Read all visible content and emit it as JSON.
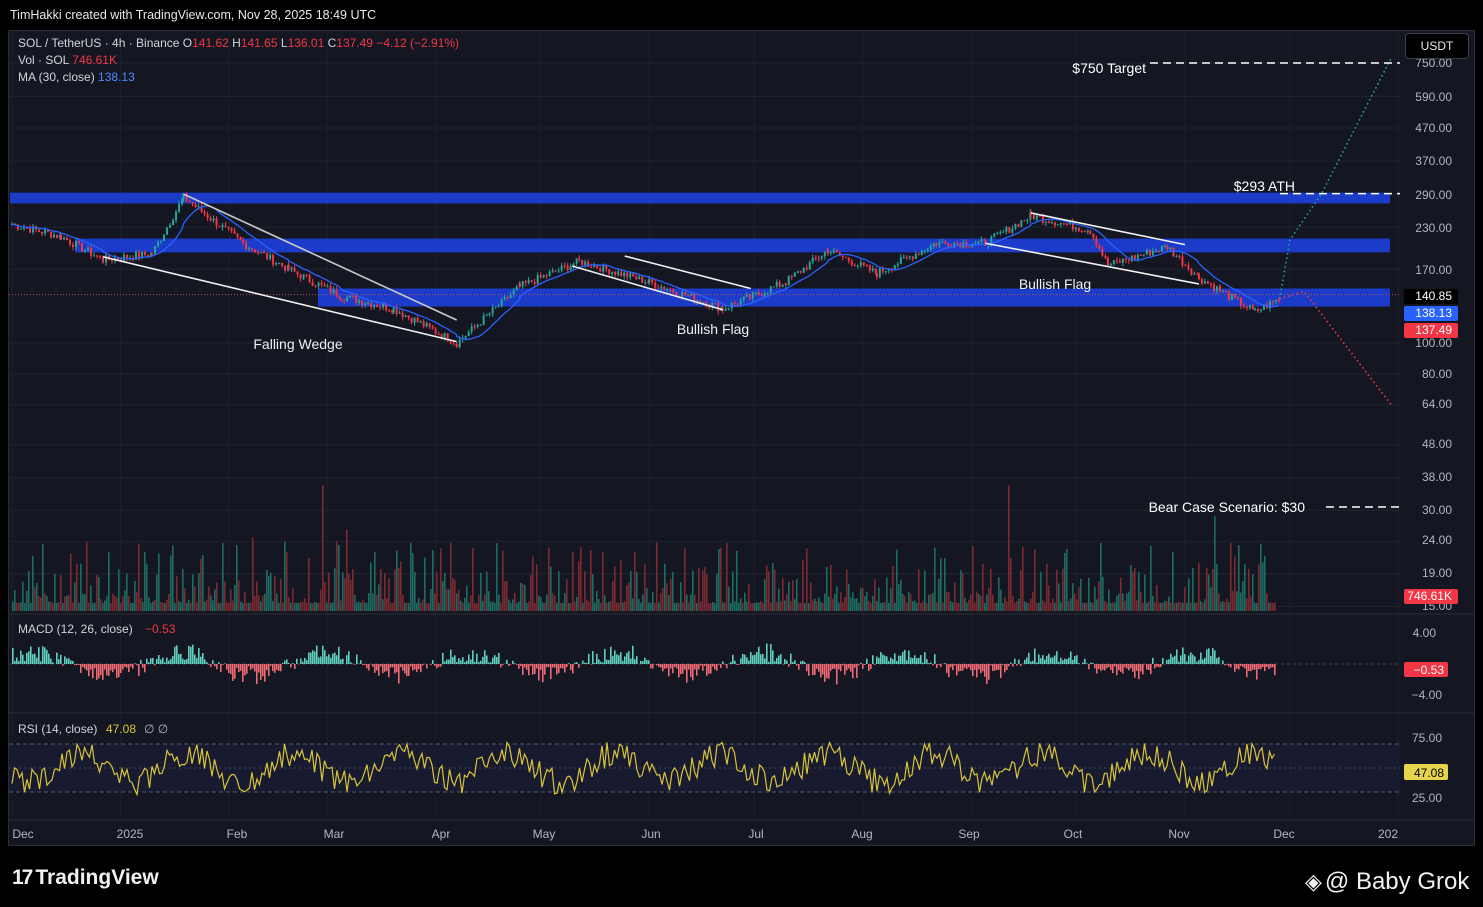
{
  "header": {
    "attribution": "TimHakki created with TradingView.com, Nov 28, 2025 18:49 UTC",
    "symbol": "SOL / TetherUS · 4h · Binance",
    "o_label": "O",
    "o": "141.62",
    "h_label": "H",
    "h": "141.65",
    "l_label": "L",
    "l": "136.01",
    "c_label": "C",
    "c": "137.49",
    "change": "−4.12 (−2.91%)",
    "vol_label": "Vol · SOL",
    "vol": "746.61K",
    "ma_label": "MA (30, close)",
    "ma": "138.13"
  },
  "currency_button": "USDT",
  "price_axis": [
    "750.00",
    "590.00",
    "470.00",
    "370.00",
    "290.00",
    "230.00",
    "170.00",
    "100.00",
    "80.00",
    "64.00",
    "48.00",
    "38.00",
    "30.00",
    "24.00",
    "19.00",
    "15.00"
  ],
  "price_labels": {
    "last_hi": "140.85",
    "ma": "138.13",
    "close": "137.49",
    "vol": "746.61K"
  },
  "macd": {
    "label": "MACD (12, 26, close)",
    "value": "−0.53",
    "axis": [
      "4.00",
      "−4.00"
    ],
    "badge": "−0.53"
  },
  "rsi": {
    "label": "RSI (14, close)",
    "value": "47.08",
    "extra": "∅  ∅",
    "axis": [
      "75.00",
      "25.00"
    ],
    "badge": "47.08"
  },
  "time_axis": [
    "Dec",
    "2025",
    "Feb",
    "Mar",
    "Apr",
    "May",
    "Jun",
    "Jul",
    "Aug",
    "Sep",
    "Oct",
    "Nov",
    "Dec",
    "202"
  ],
  "annotations": {
    "target": "$750 Target",
    "ath": "$293 ATH",
    "bear": "Bear Case Scenario: $30",
    "wedge": "Falling Wedge",
    "flag1": "Bullish Flag",
    "flag2": "Bullish Flag"
  },
  "footer": {
    "logo": "TradingView",
    "watermark": "@ Baby Grok"
  },
  "colors": {
    "up": "#26a69a",
    "down": "#f23645",
    "ma": "#2962ff",
    "band": "#1a3bd6",
    "rsi": "#d8c43a",
    "bg": "#141721"
  },
  "chart_data": {
    "type": "candlestick",
    "symbol": "SOL / TetherUS",
    "interval": "4h",
    "y_scale": "log",
    "ylim": [
      15,
      750
    ],
    "x_range": [
      "Dec 2024",
      "Dec 2025"
    ],
    "price_path": [
      {
        "date": "2024-12-01",
        "close": 235
      },
      {
        "date": "2024-12-15",
        "close": 215
      },
      {
        "date": "2024-12-27",
        "close": 182
      },
      {
        "date": "2025-01-10",
        "close": 190
      },
      {
        "date": "2025-01-19",
        "close": 285
      },
      {
        "date": "2025-02-05",
        "close": 205
      },
      {
        "date": "2025-02-18",
        "close": 170
      },
      {
        "date": "2025-03-05",
        "close": 140
      },
      {
        "date": "2025-03-20",
        "close": 128
      },
      {
        "date": "2025-04-07",
        "close": 100
      },
      {
        "date": "2025-04-25",
        "close": 150
      },
      {
        "date": "2025-05-12",
        "close": 180
      },
      {
        "date": "2025-06-01",
        "close": 155
      },
      {
        "date": "2025-06-22",
        "close": 128
      },
      {
        "date": "2025-07-10",
        "close": 155
      },
      {
        "date": "2025-07-22",
        "close": 195
      },
      {
        "date": "2025-08-05",
        "close": 165
      },
      {
        "date": "2025-08-22",
        "close": 205
      },
      {
        "date": "2025-09-05",
        "close": 205
      },
      {
        "date": "2025-09-18",
        "close": 250
      },
      {
        "date": "2025-10-05",
        "close": 225
      },
      {
        "date": "2025-10-10",
        "close": 175
      },
      {
        "date": "2025-10-27",
        "close": 200
      },
      {
        "date": "2025-11-05",
        "close": 160
      },
      {
        "date": "2025-11-21",
        "close": 125
      },
      {
        "date": "2025-11-28",
        "close": 137.49
      }
    ],
    "scenarios": [
      {
        "name": "bull",
        "color": "#26a69a",
        "path": [
          {
            "date": "2025-12-01",
            "close": 210
          },
          {
            "date": "2025-12-10",
            "close": 293
          },
          {
            "date": "2025-12-30",
            "close": 780
          }
        ]
      },
      {
        "name": "bear",
        "color": "#f23645",
        "path": [
          {
            "date": "2025-12-05",
            "close": 145
          },
          {
            "date": "2025-12-30",
            "close": 64
          }
        ]
      }
    ],
    "levels": [
      {
        "label": "$750 Target",
        "value": 750
      },
      {
        "label": "$293 ATH",
        "value": 293
      },
      {
        "label": "Bear Case Scenario: $30",
        "value": 30
      }
    ],
    "zones": [
      [
        273,
        295
      ],
      [
        192,
        212
      ],
      [
        130,
        148
      ]
    ],
    "patterns": [
      "Falling Wedge",
      "Bullish Flag",
      "Bullish Flag"
    ],
    "indicators": {
      "MACD": -0.53,
      "RSI": 47.08,
      "MA30": 138.13,
      "Volume": "746.61K"
    }
  }
}
